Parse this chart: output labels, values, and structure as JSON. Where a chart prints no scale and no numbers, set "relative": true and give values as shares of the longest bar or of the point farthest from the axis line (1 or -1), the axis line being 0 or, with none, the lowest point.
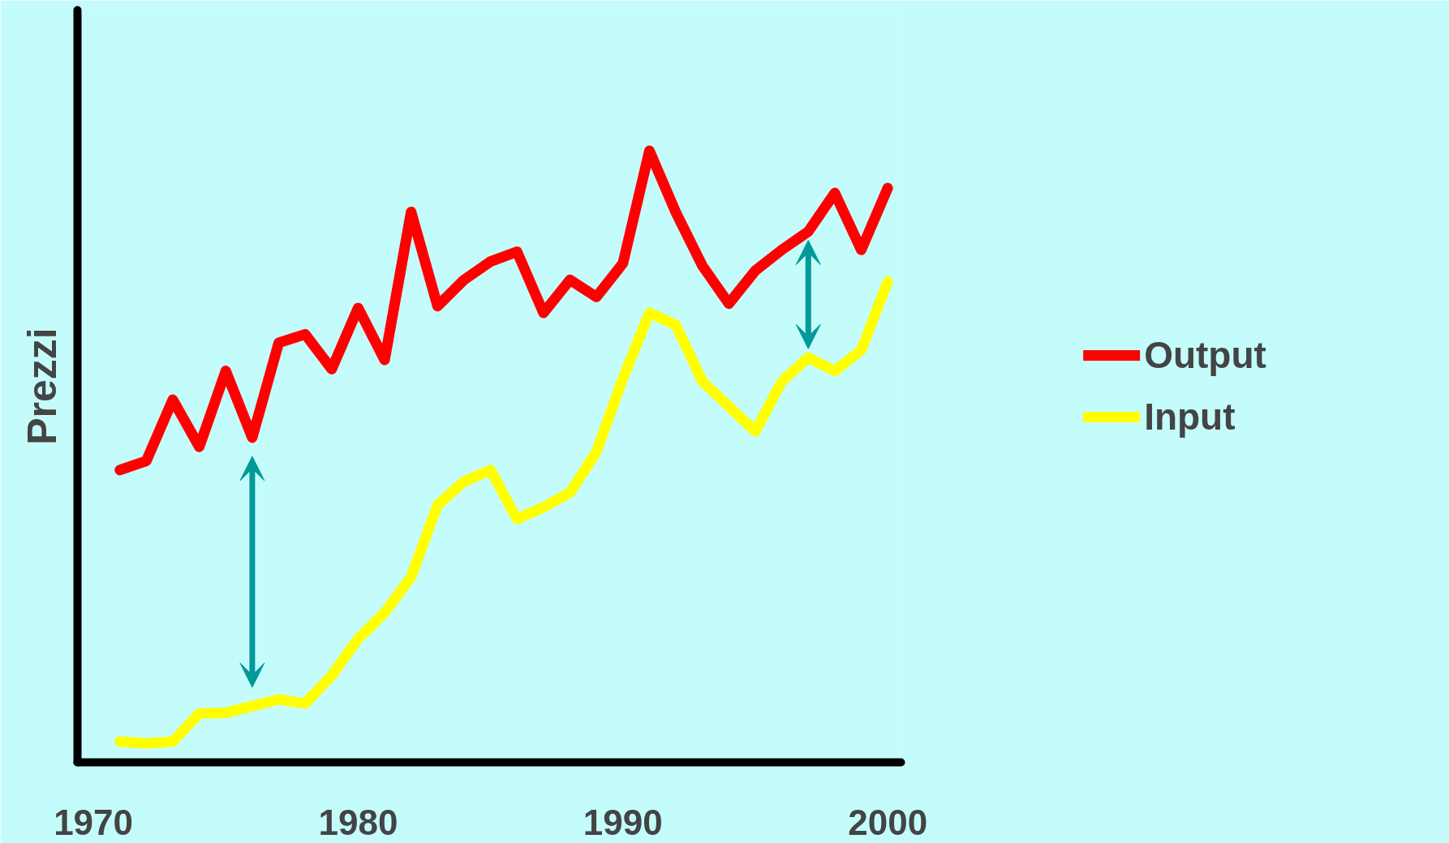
{
  "chart_data": {
    "type": "line",
    "ylabel": "Prezzi",
    "relative": true,
    "x": [
      1971,
      1972,
      1973,
      1974,
      1975,
      1976,
      1977,
      1978,
      1979,
      1980,
      1981,
      1982,
      1983,
      1984,
      1985,
      1986,
      1987,
      1988,
      1989,
      1990,
      1991,
      1992,
      1993,
      1994,
      1995,
      1996,
      1997,
      1998,
      1999,
      2000
    ],
    "xlim": [
      1969.4,
      2000.5
    ],
    "xticks": [
      1970,
      1980,
      1990,
      2000
    ],
    "series": [
      {
        "name": "Output",
        "color": "#ff0000",
        "values": [
          0.478,
          0.493,
          0.593,
          0.516,
          0.64,
          0.531,
          0.686,
          0.7,
          0.643,
          0.743,
          0.658,
          0.9,
          0.746,
          0.789,
          0.819,
          0.835,
          0.735,
          0.789,
          0.761,
          0.816,
          1.0,
          0.899,
          0.812,
          0.75,
          0.804,
          0.838,
          0.868,
          0.931,
          0.838,
          0.939
        ]
      },
      {
        "name": "Input",
        "color": "#ffff00",
        "values": [
          0.034,
          0.031,
          0.034,
          0.08,
          0.081,
          0.092,
          0.103,
          0.096,
          0.142,
          0.202,
          0.245,
          0.303,
          0.421,
          0.459,
          0.478,
          0.398,
          0.417,
          0.441,
          0.508,
          0.628,
          0.735,
          0.715,
          0.623,
          0.582,
          0.541,
          0.623,
          0.662,
          0.64,
          0.674,
          0.786
        ]
      }
    ],
    "legend": "right",
    "grid": false,
    "marker": "none",
    "line_style": "solid"
  }
}
